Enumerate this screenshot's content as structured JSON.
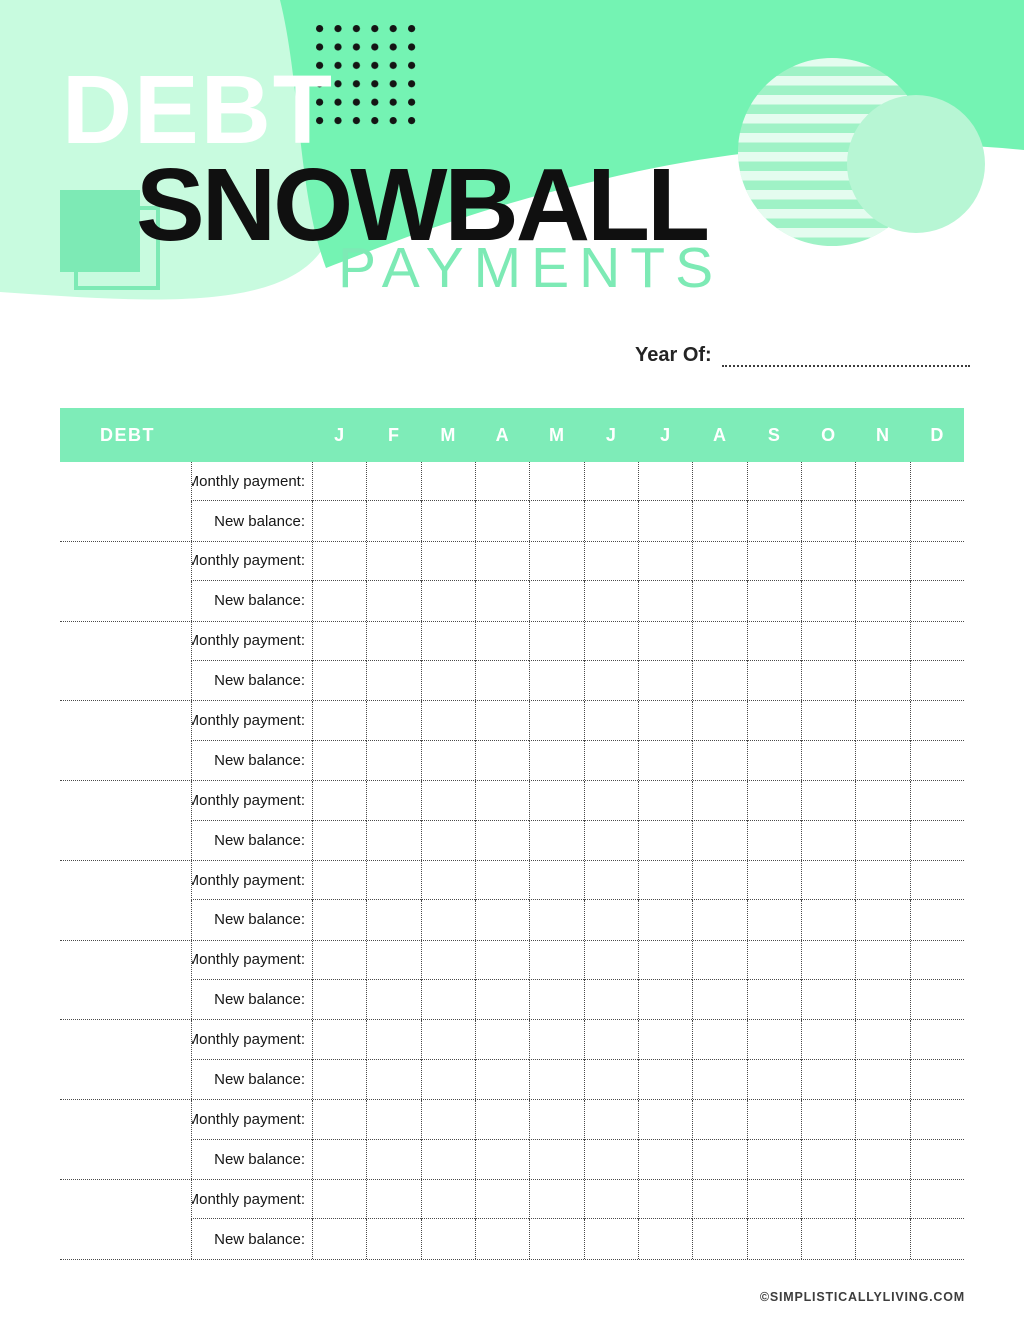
{
  "header": {
    "title_line1": "DEBT",
    "title_line2": "SNOWBALL",
    "title_line3": "PAYMENTS"
  },
  "year": {
    "label": "Year Of:",
    "value": ""
  },
  "table": {
    "debt_header": "DEBT",
    "months": [
      "J",
      "F",
      "M",
      "A",
      "M",
      "J",
      "J",
      "A",
      "S",
      "O",
      "N",
      "D"
    ],
    "row_labels": {
      "payment": "Monthly payment:",
      "balance": "New balance:"
    },
    "num_debt_rows": 10,
    "cell_values": ""
  },
  "footer": {
    "credit": "©SIMPLISTICALLYLIVING.COM"
  },
  "colors": {
    "mint_dark": "#74f3b3",
    "mint_light": "#c8fbdf",
    "mint_mid": "#7deab5",
    "header_bg": "#7eecb8",
    "stripe_circle": "#9ff2c6",
    "solid_circle": "#b7f6d4",
    "grid_color": "#4a4a4a",
    "dots": "#141414"
  }
}
